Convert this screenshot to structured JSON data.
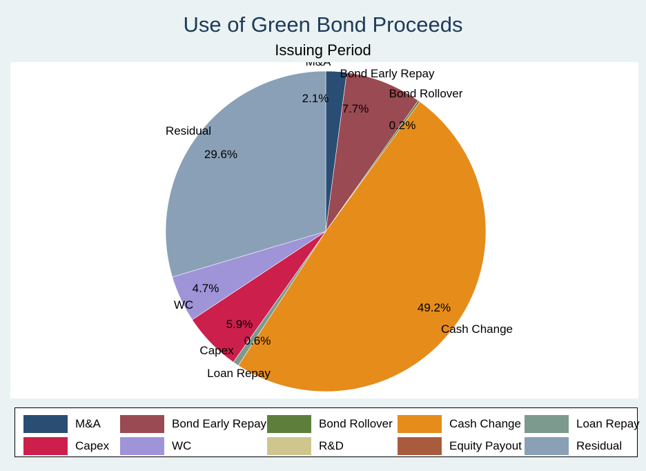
{
  "chart_data": {
    "type": "pie",
    "title": "Use of Green Bond Proceeds",
    "subtitle": "Issuing Period",
    "slices": [
      {
        "label": "M&A",
        "value": 2.1,
        "pct_label": "2.1%",
        "color": "#2a4d74"
      },
      {
        "label": "Bond Early Repay",
        "value": 7.7,
        "pct_label": "7.7%",
        "color": "#9a4a52"
      },
      {
        "label": "Bond Rollover",
        "value": 0.2,
        "pct_label": "0.2%",
        "color": "#5e7f3c"
      },
      {
        "label": "Cash Change",
        "value": 49.2,
        "pct_label": "49.2%",
        "color": "#e58c1b"
      },
      {
        "label": "Loan Repay",
        "value": 0.6,
        "pct_label": "0.6%",
        "color": "#7c9a8e"
      },
      {
        "label": "Capex",
        "value": 5.9,
        "pct_label": "5.9%",
        "color": "#cc1f4c"
      },
      {
        "label": "WC",
        "value": 4.7,
        "pct_label": "4.7%",
        "color": "#9f94d8"
      },
      {
        "label": "R&D",
        "value": 0.0,
        "pct_label": "",
        "color": "#cfc68e"
      },
      {
        "label": "Equity Payout",
        "value": 0.0,
        "pct_label": "",
        "color": "#a85c3e"
      },
      {
        "label": "Residual",
        "value": 29.6,
        "pct_label": "29.6%",
        "color": "#8aa0b6"
      }
    ],
    "legend": {
      "position": "bottom",
      "rows": [
        [
          "M&A",
          "Bond Early Repay",
          "Bond Rollover",
          "Cash Change",
          "Loan Repay"
        ],
        [
          "Capex",
          "WC",
          "R&D",
          "Equity Payout",
          "Residual"
        ]
      ]
    }
  }
}
